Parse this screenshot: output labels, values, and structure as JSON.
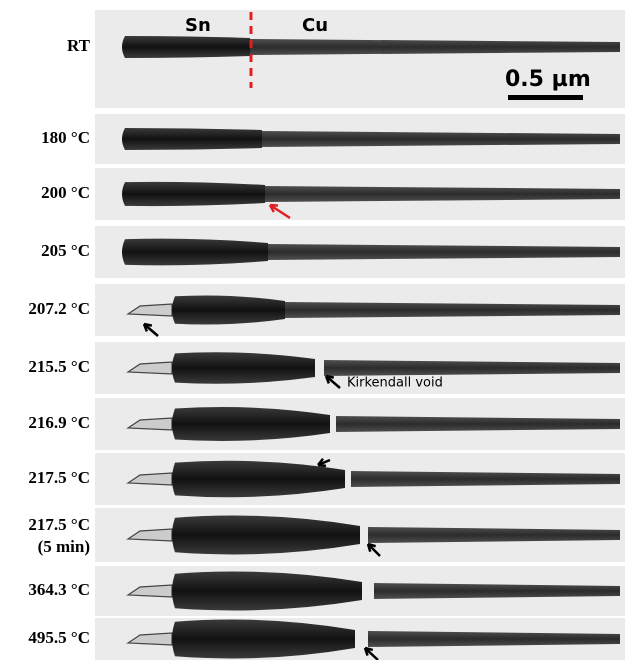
{
  "panels": [
    {
      "label": "RT"
    },
    {
      "label": "180 °C"
    },
    {
      "label": "200 °C"
    },
    {
      "label": "205 °C"
    },
    {
      "label": "207.2 °C"
    },
    {
      "label": "215.5 °C"
    },
    {
      "label": "216.9 °C"
    },
    {
      "label": "217.5 °C"
    },
    {
      "label": "217.5 °C",
      "sublabel": "(5 min)"
    },
    {
      "label": "364.3 °C"
    },
    {
      "label": "495.5 °C"
    }
  ],
  "annotations": {
    "sn": "Sn",
    "cu": "Cu",
    "scale_bar": "0.5 µm",
    "void": "Kirkendall void"
  }
}
